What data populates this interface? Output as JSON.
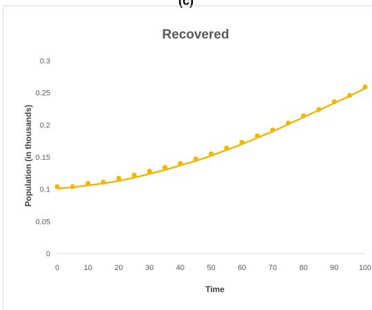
{
  "panel_label": "(c)",
  "colors": {
    "series": "#f2b705",
    "axis": "#d9d9d9",
    "text": "#595959"
  },
  "chart_data": {
    "type": "scatter",
    "title": "Recovered",
    "xlabel": "Time",
    "ylabel": "Population  (in thousands)",
    "xlim": [
      0,
      100
    ],
    "ylim": [
      0,
      0.3
    ],
    "x_ticks": [
      "0",
      "10",
      "20",
      "30",
      "40",
      "50",
      "60",
      "70",
      "80",
      "90",
      "100"
    ],
    "y_ticks": [
      "0",
      "0.05",
      "0.1",
      "0.15",
      "0.2",
      "0.25",
      "0.3"
    ],
    "grid": false,
    "legend": "none",
    "series": [
      {
        "kind": "points",
        "x": [
          0,
          5,
          10,
          15,
          20,
          25,
          30,
          35,
          40,
          45,
          50,
          55,
          60,
          65,
          70,
          75,
          80,
          85,
          90,
          95,
          100
        ],
        "y": [
          0.104,
          0.104,
          0.109,
          0.111,
          0.117,
          0.122,
          0.128,
          0.134,
          0.14,
          0.147,
          0.155,
          0.164,
          0.173,
          0.183,
          0.192,
          0.203,
          0.214,
          0.224,
          0.236,
          0.246,
          0.259
        ]
      },
      {
        "kind": "line",
        "x": [
          0,
          5,
          10,
          15,
          20,
          25,
          30,
          35,
          40,
          45,
          50,
          55,
          60,
          65,
          70,
          75,
          80,
          85,
          90,
          95,
          100
        ],
        "y": [
          0.101,
          0.103,
          0.106,
          0.109,
          0.113,
          0.118,
          0.124,
          0.13,
          0.137,
          0.144,
          0.152,
          0.161,
          0.17,
          0.18,
          0.19,
          0.201,
          0.212,
          0.223,
          0.234,
          0.245,
          0.257
        ]
      }
    ]
  }
}
